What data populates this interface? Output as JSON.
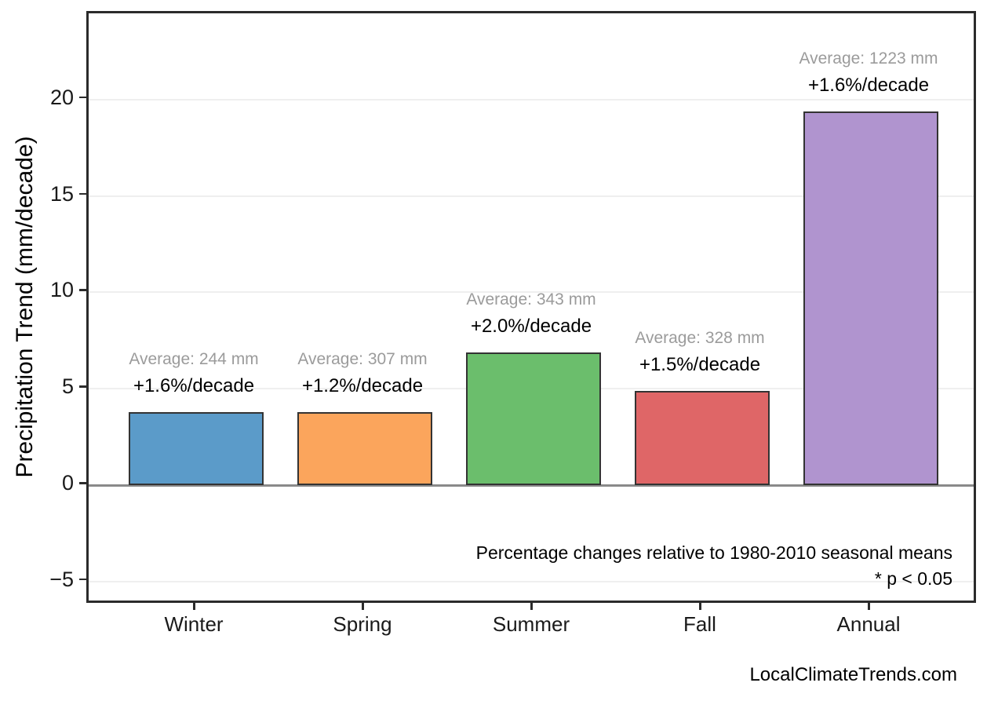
{
  "chart_data": {
    "type": "bar",
    "title": "",
    "categories": [
      "Winter",
      "Spring",
      "Summer",
      "Fall",
      "Annual"
    ],
    "values": [
      3.8,
      3.8,
      6.9,
      4.9,
      19.4
    ],
    "average_mm": [
      244,
      307,
      343,
      328,
      1223
    ],
    "percent_per_decade": [
      1.6,
      1.2,
      2.0,
      1.5,
      1.6
    ],
    "bar_annotations": [
      {
        "average": "Average: 244 mm",
        "percent": "+1.6%/decade"
      },
      {
        "average": "Average: 307 mm",
        "percent": "+1.2%/decade"
      },
      {
        "average": "Average: 343 mm",
        "percent": "+2.0%/decade"
      },
      {
        "average": "Average: 328 mm",
        "percent": "+1.5%/decade"
      },
      {
        "average": "Average: 1223 mm",
        "percent": "+1.6%/decade"
      }
    ],
    "xlabel": "",
    "ylabel": "Precipitation Trend (mm/decade)",
    "yticks": [
      -5,
      0,
      5,
      10,
      15,
      20
    ],
    "ylim": [
      -6.2,
      24.5
    ],
    "grid": true,
    "legend": false,
    "notes": [
      "Percentage changes relative to 1980-2010 seasonal means",
      "* p < 0.05"
    ],
    "watermark": "LocalClimateTrends.com",
    "colors": {
      "bars": [
        "#5B9BC9",
        "#FBA55C",
        "#6BBE6C",
        "#DF6667",
        "#B094CF"
      ],
      "bar_edge": "#333333",
      "average_text": "#9B9B9B",
      "percent_text": "#000000",
      "grid": "#EFEFEF",
      "zero_line": "#8A8A8A",
      "axis_border": "#2B2B2B",
      "tick_text": "#1A1A1A"
    }
  }
}
